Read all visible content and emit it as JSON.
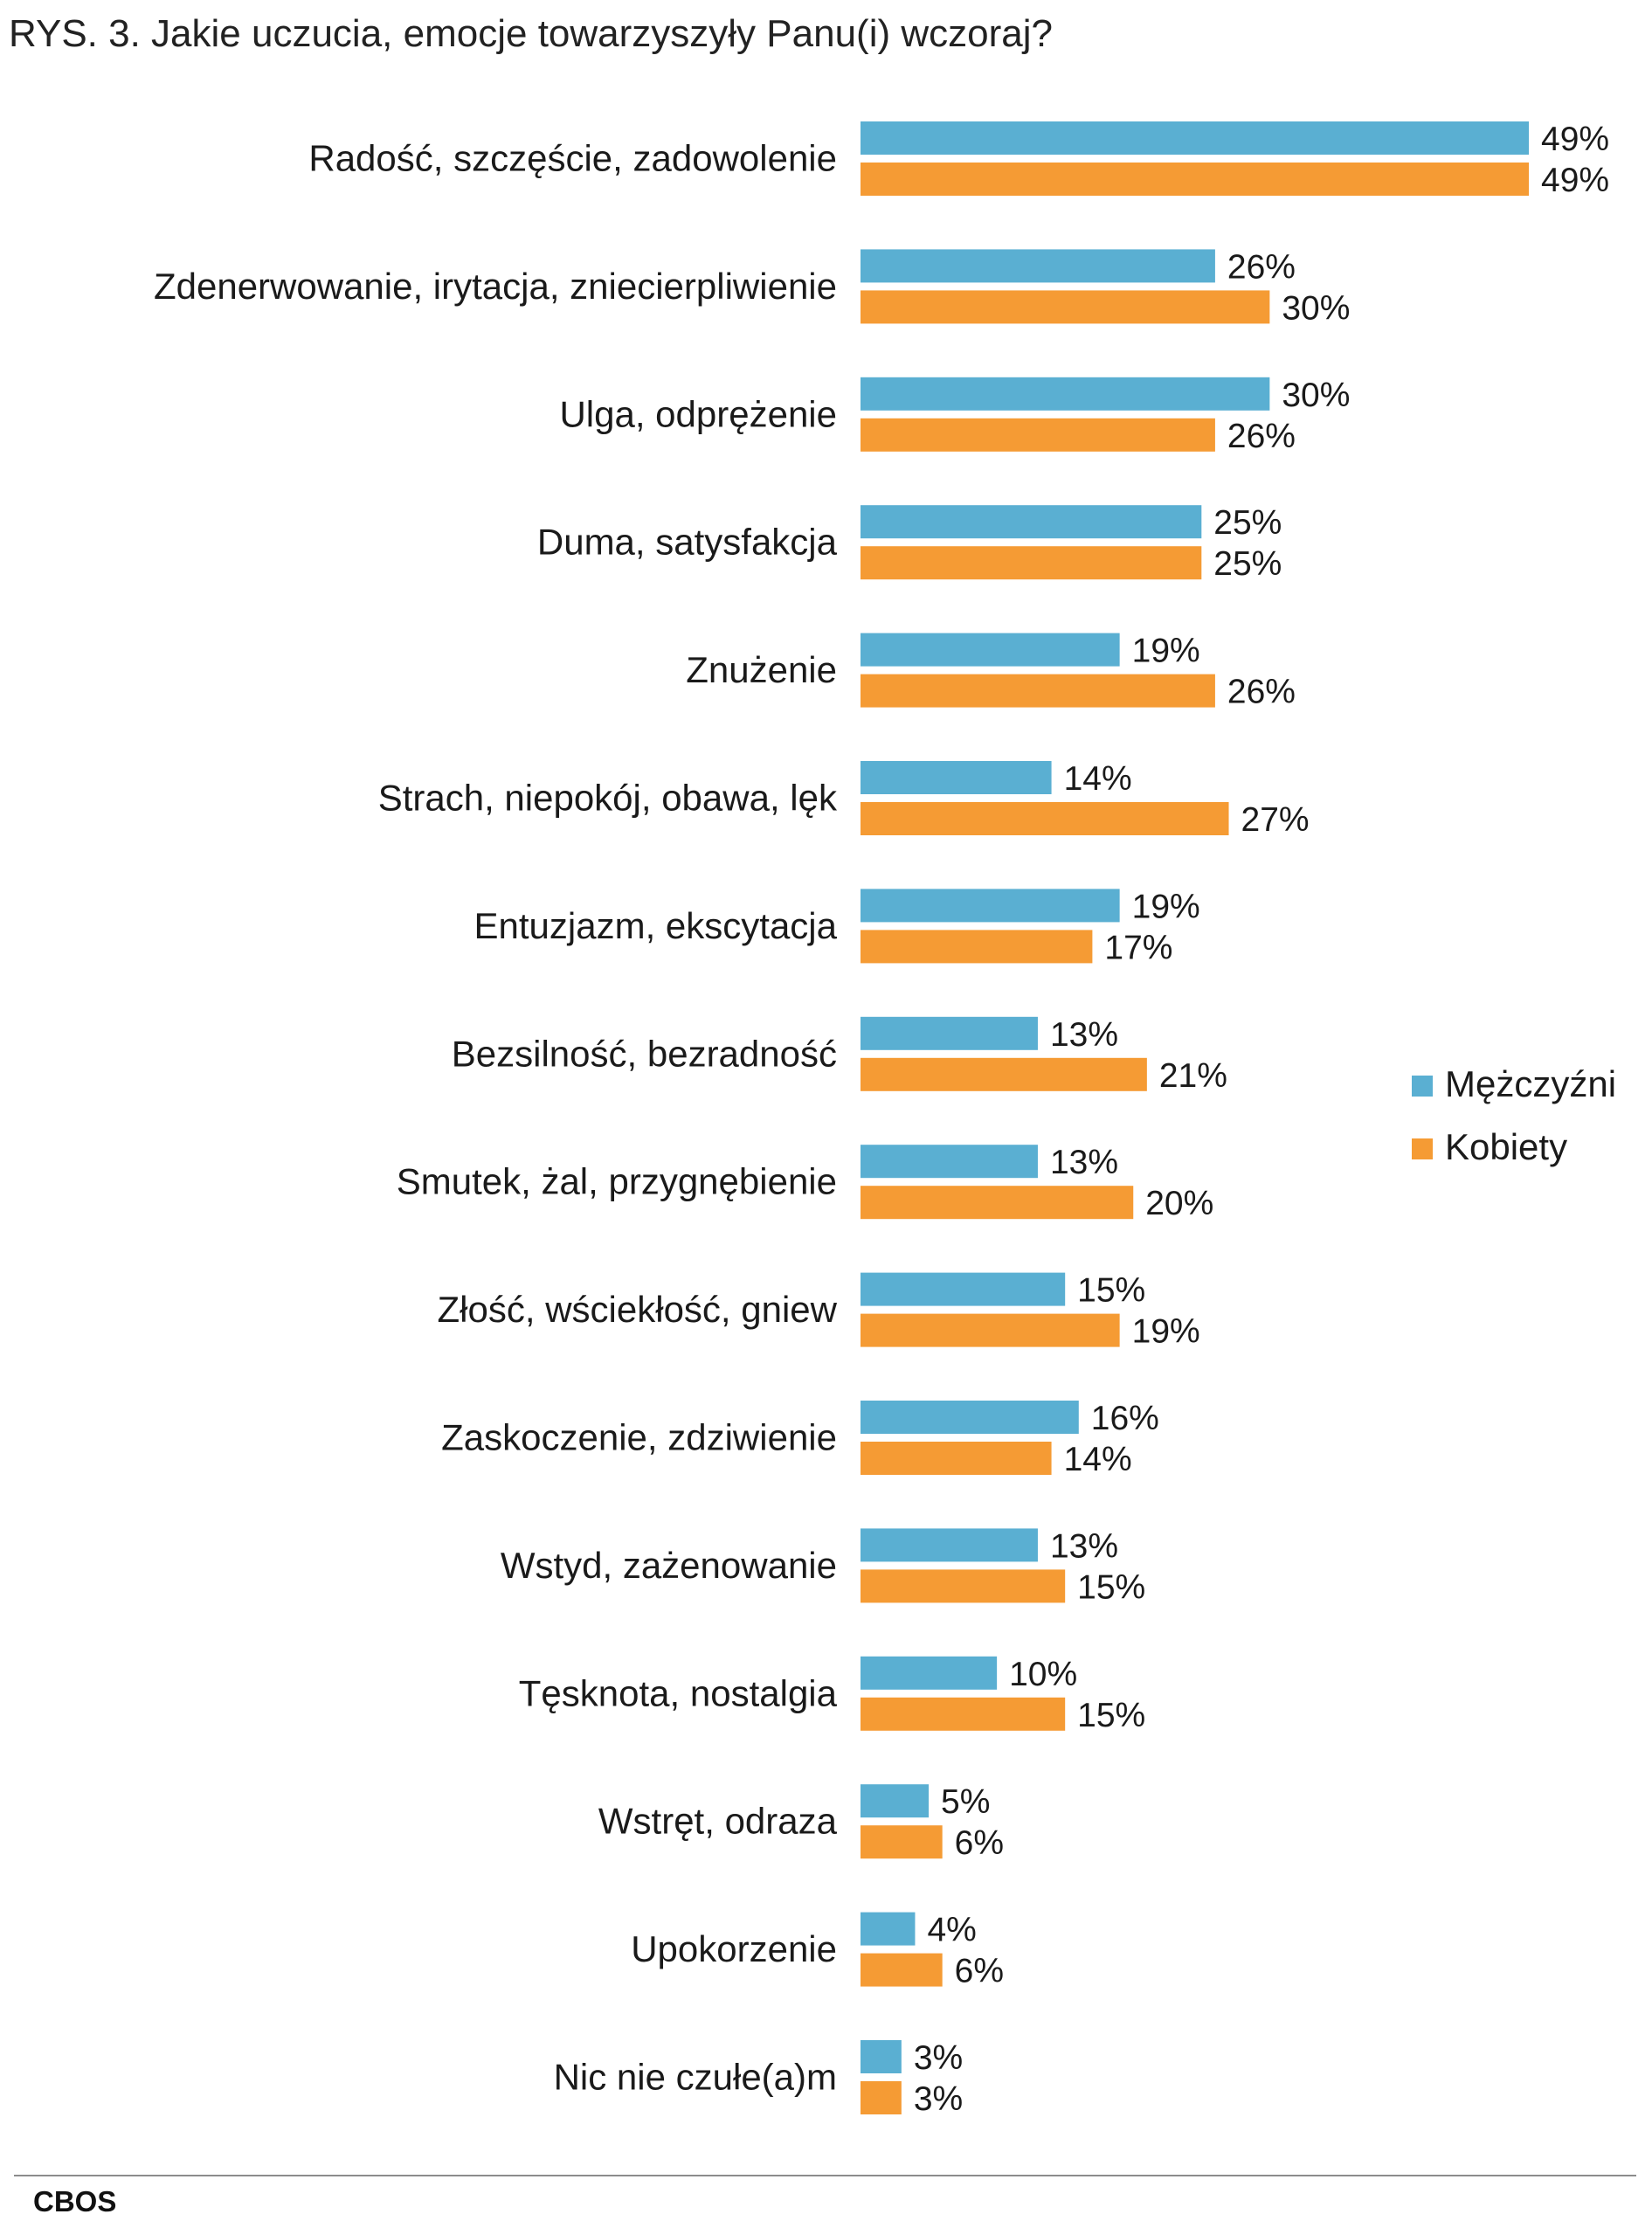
{
  "title": "RYS. 3. Jakie uczucia, emocje towarzyszyły Panu(i) wczoraj?",
  "source": "CBOS",
  "colors": {
    "men": "#5aafd2",
    "women": "#f59b34"
  },
  "chart_data": {
    "type": "bar",
    "orientation": "horizontal",
    "title": "RYS. 3. Jakie uczucia, emocje towarzyszyły Panu(i) wczoraj?",
    "xlim": [
      0,
      49
    ],
    "grid": false,
    "legend_position": "right",
    "categories": [
      "Radość, szczęście, zadowolenie",
      "Zdenerwowanie, irytacja, zniecierpliwienie",
      "Ulga, odprężenie",
      "Duma, satysfakcja",
      "Znużenie",
      "Strach, niepokój, obawa, lęk",
      "Entuzjazm, ekscytacja",
      "Bezsilność, bezradność",
      "Smutek, żal, przygnębienie",
      "Złość, wściekłość, gniew",
      "Zaskoczenie, zdziwienie",
      "Wstyd, zażenowanie",
      "Tęsknota, nostalgia",
      "Wstręt, odraza",
      "Upokorzenie",
      "Nic nie czułe(a)m"
    ],
    "series": [
      {
        "name": "Mężczyźni",
        "color": "#5aafd2",
        "values": [
          49,
          26,
          30,
          25,
          19,
          14,
          19,
          13,
          13,
          15,
          16,
          13,
          10,
          5,
          4,
          3
        ],
        "labels": [
          "49%",
          "26%",
          "30%",
          "25%",
          "19%",
          "14%",
          "19%",
          "13%",
          "13%",
          "15%",
          "16%",
          "13%",
          "10%",
          "5%",
          "4%",
          "3%"
        ]
      },
      {
        "name": "Kobiety",
        "color": "#f59b34",
        "values": [
          49,
          30,
          26,
          25,
          26,
          27,
          17,
          21,
          20,
          19,
          14,
          15,
          15,
          6,
          6,
          3
        ],
        "labels": [
          "49%",
          "30%",
          "26%",
          "25%",
          "26%",
          "27%",
          "17%",
          "21%",
          "20%",
          "19%",
          "14%",
          "15%",
          "15%",
          "6%",
          "6%",
          "3%"
        ]
      }
    ]
  }
}
